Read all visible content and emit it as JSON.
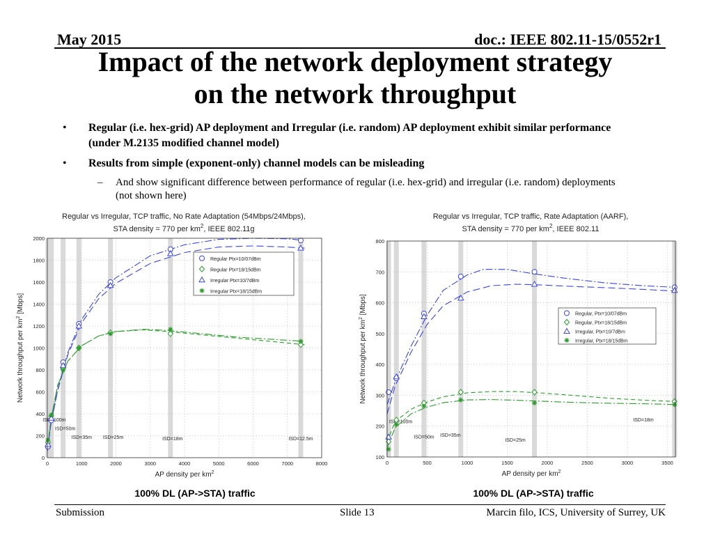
{
  "header": {
    "date": "May 2015",
    "doc": "doc.: IEEE 802.11-15/0552r1"
  },
  "title_line1": "Impact of the network deployment strategy",
  "title_line2": "on the network throughput",
  "bullets": [
    "Regular (i.e. hex-grid) AP deployment and Irregular (i.e. random) AP deployment exhibit similar performance (under M.2135 modified channel model)",
    "Results from simple (exponent-only) channel models can be misleading"
  ],
  "bullet_glyph": "•",
  "dash_glyph": "–",
  "sub_bullet": "And show significant difference between performance of regular (i.e. hex-grid) and irregular (i.e. random) deployments (not shown here)",
  "captions": [
    "100% DL (AP->STA) traffic",
    "100% DL (AP->STA) traffic"
  ],
  "footer": {
    "left": "Submission",
    "center": "Slide 13",
    "right": "Marcin filo, ICS, University of Surrey, UK"
  },
  "colors": {
    "blue": "#3b46d9",
    "green": "#2c9a2c",
    "isd_band": "#d9d9d9"
  },
  "chart_data": [
    {
      "type": "line",
      "title": "Regular vs Irregular, TCP traffic, No Rate Adaptation (54Mbps/24Mbps), STA density = 770 per km², IEEE 802.11g",
      "title_lines": [
        "Regular vs Irregular, TCP traffic, No Rate Adaptation (54Mbps/24Mbps),",
        "STA density = 770 per km",
        ", IEEE 802.11g"
      ],
      "xlabel": "AP density per km",
      "ylabel": "Network throughput per km",
      "ylabel_unit": "[Mbps]",
      "superscript": "2",
      "xlim": [
        0,
        8000
      ],
      "ylim": [
        0,
        2000
      ],
      "xticks": [
        0,
        1000,
        2000,
        3000,
        4000,
        5000,
        6000,
        7000,
        8000
      ],
      "yticks": [
        0,
        200,
        400,
        600,
        800,
        1000,
        1200,
        1400,
        1600,
        1800,
        2000
      ],
      "isd_bands": [
        {
          "x": 18,
          "label": "",
          "lx": 0,
          "ly": 0
        },
        {
          "x": 115,
          "label": "ISD=100m",
          "lx": 200,
          "ly": 330
        },
        {
          "x": 460,
          "label": "ISD=50m",
          "lx": 520,
          "ly": 250
        },
        {
          "x": 920,
          "label": "ISD=35m",
          "lx": 1000,
          "ly": 170
        },
        {
          "x": 1840,
          "label": "ISD=25m",
          "lx": 1920,
          "ly": 170
        },
        {
          "x": 3590,
          "label": "ISD=18m",
          "lx": 3650,
          "ly": 160
        },
        {
          "x": 7390,
          "label": "ISD=12.5m",
          "lx": 7390,
          "ly": 160
        }
      ],
      "legend": [
        "Regular Ptx=10/07dBm",
        "Regular Ptx=18/15dBm",
        "Irregular Ptx=10/7dBm",
        "Irregular Ptx=18/15dBm"
      ],
      "series": [
        {
          "name": "Regular Ptx=10/07dBm",
          "color": "blue",
          "marker": "circle",
          "dash": "10,3,2,3",
          "x": [
            18,
            115,
            460,
            920,
            1840,
            3590,
            7390
          ],
          "y": [
            100,
            340,
            870,
            1220,
            1600,
            1900,
            1980
          ],
          "curve_x": [
            0,
            100,
            300,
            600,
            1000,
            1500,
            2000,
            3000,
            4000,
            5000,
            6000,
            7000,
            7500
          ],
          "curve_y": [
            60,
            300,
            620,
            960,
            1260,
            1490,
            1640,
            1840,
            1940,
            1990,
            2000,
            1995,
            1980
          ]
        },
        {
          "name": "Regular Ptx=18/15dBm",
          "color": "green",
          "marker": "diamond",
          "dash": "6,4",
          "x": [
            18,
            115,
            460,
            920,
            1840,
            3590,
            7390
          ],
          "y": [
            140,
            380,
            810,
            1000,
            1140,
            1130,
            1030
          ],
          "curve_x": [
            0,
            100,
            300,
            600,
            1000,
            1500,
            2000,
            2800,
            3500,
            4500,
            5500,
            6500,
            7500
          ],
          "curve_y": [
            80,
            330,
            660,
            880,
            1020,
            1110,
            1150,
            1165,
            1150,
            1120,
            1090,
            1060,
            1030
          ]
        },
        {
          "name": "Irregular Ptx=10/7dBm",
          "color": "blue",
          "marker": "triangle",
          "dash": "10,5",
          "x": [
            18,
            115,
            460,
            920,
            1840,
            3590,
            7390
          ],
          "y": [
            120,
            360,
            840,
            1200,
            1570,
            1860,
            1910
          ],
          "curve_x": [
            0,
            100,
            300,
            600,
            1000,
            1500,
            2000,
            3000,
            4000,
            5000,
            6000,
            7000,
            7500
          ],
          "curve_y": [
            60,
            300,
            610,
            940,
            1230,
            1450,
            1590,
            1770,
            1870,
            1920,
            1930,
            1920,
            1910
          ]
        },
        {
          "name": "Irregular Ptx=18/15dBm",
          "color": "green",
          "marker": "star",
          "dash": "10,3,2,3",
          "x": [
            18,
            115,
            460,
            920,
            1840,
            3590,
            7390
          ],
          "y": [
            160,
            390,
            800,
            1000,
            1130,
            1170,
            1060
          ],
          "curve_x": [
            0,
            100,
            300,
            600,
            1000,
            1500,
            2000,
            2800,
            3500,
            4500,
            5500,
            6500,
            7500
          ],
          "curve_y": [
            80,
            340,
            660,
            880,
            1020,
            1110,
            1150,
            1170,
            1160,
            1130,
            1100,
            1080,
            1060
          ]
        }
      ]
    },
    {
      "type": "line",
      "title": "Regular vs Irregular, TCP traffic, Rate Adaptation (AARF), STA density = 770 per km², IEEE 802.11",
      "title_lines": [
        "Regular vs Irregular, TCP traffic, Rate Adaptation (AARF),",
        "STA density = 770 per km",
        ", IEEE 802.11"
      ],
      "xlabel": "AP density per km",
      "ylabel": "Network throughput per km",
      "ylabel_unit": "[Mbps]",
      "superscript": "2",
      "xlim": [
        0,
        3600
      ],
      "ylim": [
        100,
        800
      ],
      "xticks": [
        0,
        500,
        1000,
        1500,
        2000,
        2500,
        3000,
        3500
      ],
      "yticks": [
        100,
        200,
        300,
        400,
        500,
        600,
        700,
        800
      ],
      "isd_bands": [
        {
          "x": 18,
          "label": "",
          "lx": 0,
          "ly": 0
        },
        {
          "x": 115,
          "label": "ISD=100m",
          "lx": 170,
          "ly": 210
        },
        {
          "x": 460,
          "label": "ISD=50m",
          "lx": 460,
          "ly": 160
        },
        {
          "x": 920,
          "label": "ISD=35m",
          "lx": 790,
          "ly": 165
        },
        {
          "x": 1840,
          "label": "ISD=25m",
          "lx": 1600,
          "ly": 150
        },
        {
          "x": 3590,
          "label": "ISD=18m",
          "lx": 3200,
          "ly": 215
        }
      ],
      "legend": [
        "Regular, Ptx=10/07dBm",
        "Regular, Ptx=18/15dBm",
        "Irregular, Ptx=10/7dBm",
        "Irregular, Ptx=18/15dBm"
      ],
      "series": [
        {
          "name": "Regular, Ptx=10/07dBm",
          "color": "blue",
          "marker": "circle",
          "dash": "10,3,2,3",
          "x": [
            18,
            115,
            460,
            920,
            1840,
            3590
          ],
          "y": [
            310,
            355,
            565,
            685,
            700,
            650
          ],
          "curve_x": [
            0,
            100,
            300,
            500,
            700,
            1000,
            1200,
            1500,
            1800,
            2200,
            2700,
            3200,
            3590
          ],
          "curve_y": [
            270,
            345,
            460,
            560,
            640,
            690,
            708,
            708,
            695,
            680,
            665,
            655,
            650
          ]
        },
        {
          "name": "Regular, Ptx=18/15dBm",
          "color": "green",
          "marker": "diamond",
          "dash": "6,4",
          "x": [
            18,
            115,
            460,
            920,
            1840,
            3590
          ],
          "y": [
            150,
            220,
            275,
            310,
            310,
            280
          ],
          "curve_x": [
            0,
            100,
            300,
            500,
            700,
            1000,
            1300,
            1600,
            1900,
            2300,
            2800,
            3300,
            3590
          ],
          "curve_y": [
            150,
            215,
            255,
            278,
            295,
            308,
            312,
            312,
            308,
            300,
            290,
            283,
            280
          ]
        },
        {
          "name": "Irregular, Ptx=10/7dBm",
          "color": "blue",
          "marker": "triangle",
          "dash": "10,5",
          "x": [
            18,
            115,
            460,
            920,
            1840,
            3590
          ],
          "y": [
            165,
            360,
            555,
            615,
            660,
            640
          ],
          "curve_x": [
            0,
            100,
            300,
            500,
            700,
            1000,
            1300,
            1600,
            1900,
            2300,
            2800,
            3300,
            3590
          ],
          "curve_y": [
            240,
            330,
            440,
            530,
            590,
            635,
            655,
            660,
            658,
            653,
            648,
            642,
            638
          ]
        },
        {
          "name": "Irregular, Ptx=18/15dBm",
          "color": "green",
          "marker": "star",
          "dash": "10,3,2,3",
          "x": [
            18,
            115,
            460,
            920,
            1840,
            3590
          ],
          "y": [
            125,
            205,
            265,
            285,
            275,
            270
          ],
          "curve_x": [
            0,
            100,
            300,
            500,
            700,
            1000,
            1300,
            1600,
            1900,
            2300,
            2800,
            3300,
            3590
          ],
          "curve_y": [
            130,
            195,
            240,
            262,
            276,
            285,
            286,
            284,
            281,
            277,
            274,
            272,
            270
          ]
        }
      ]
    }
  ]
}
